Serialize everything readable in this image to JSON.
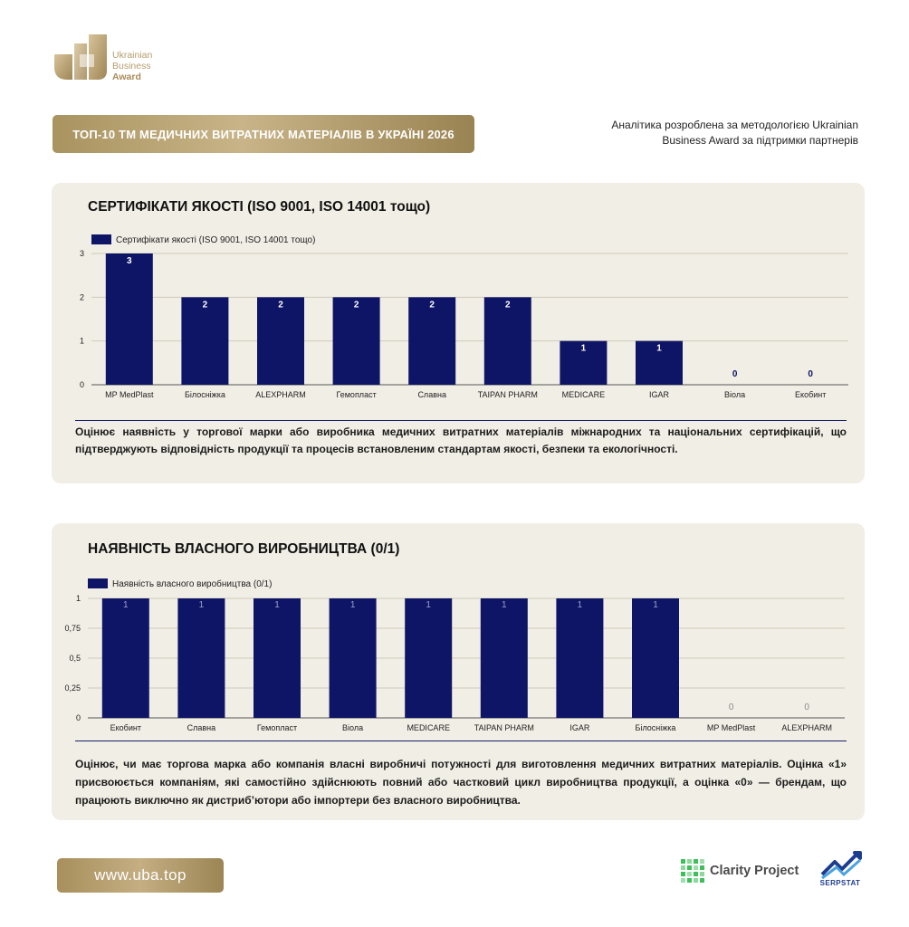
{
  "logo": {
    "line1": "Ukrainian",
    "line2": "Business",
    "line3": "Award"
  },
  "header": {
    "title": "ТОП-10 ТМ МЕДИЧНИХ ВИТРАТНИХ МАТЕРІАЛІВ В УКРАЇНІ 2026",
    "methodology_line1": "Аналітика розроблена за методологією Ukrainian",
    "methodology_line2": "Business Award за підтримки партнерів"
  },
  "colors": {
    "bar": "#0f1566",
    "gold": "#b9a377",
    "card_bg": "#f1eee5"
  },
  "section1": {
    "title": "СЕРТИФІКАТИ ЯКОСТІ (ISO 9001, ISO 14001 тощо)",
    "description": "Оцінює наявність у торгової марки або виробника медичних витратних матеріалів міжнародних та національних сертифікацій, що підтверджують відповідність продукції та процесів встановленим стандартам якості, безпеки та екологічності."
  },
  "section2": {
    "title": "НАЯВНІСТЬ ВЛАСНОГО ВИРОБНИЦТВА (0/1)",
    "description": "Оцінює, чи має торгова марка або компанія власні виробничі потужності для виготовлення медичних витратних матеріалів. Оцінка «1» присвоюється компаніям, які самостійно здійснюють повний або частковий цикл виробництва продукції, а оцінка «0» — брендам, що працюють виключно як дистриб’ютори або імпортери без власного виробництва."
  },
  "chart_data": [
    {
      "type": "bar",
      "legend": [
        "Сертифікати якості (ISO 9001, ISO 14001 тощо)"
      ],
      "legend_position": "top-left",
      "categories": [
        "MP MedPlast",
        "Білосніжка",
        "ALEXPHARM",
        "Гемопласт",
        "Славна",
        "TAIPAN PHARM",
        "MEDICARE",
        "IGAR",
        "Віола",
        "Екобинт"
      ],
      "series": [
        {
          "name": "Сертифікати якості (ISO 9001, ISO 14001 тощо)",
          "values": [
            3,
            2,
            2,
            2,
            2,
            2,
            1,
            1,
            0,
            0
          ]
        }
      ],
      "ylim": [
        0,
        3
      ],
      "yticks": [
        "0",
        "1",
        "2",
        "3"
      ],
      "grid": true
    },
    {
      "type": "bar",
      "legend": [
        "Наявність власного виробництва (0/1)"
      ],
      "legend_position": "top-left",
      "categories": [
        "Екобинт",
        "Славна",
        "Гемопласт",
        "Віола",
        "MEDICARE",
        "TAIPAN PHARM",
        "IGAR",
        "Білосніжка",
        "MP MedPlast",
        "ALEXPHARM"
      ],
      "series": [
        {
          "name": "Наявність власного виробництва (0/1)",
          "values": [
            1,
            1,
            1,
            1,
            1,
            1,
            1,
            1,
            0,
            0
          ]
        }
      ],
      "ylim": [
        0,
        1
      ],
      "yticks": [
        "0",
        "0,25",
        "0,5",
        "0,75",
        "1"
      ],
      "grid": true
    }
  ],
  "footer": {
    "website": "www.uba.top",
    "partner1": "Clarity Project",
    "partner2": "SERPSTAT"
  }
}
